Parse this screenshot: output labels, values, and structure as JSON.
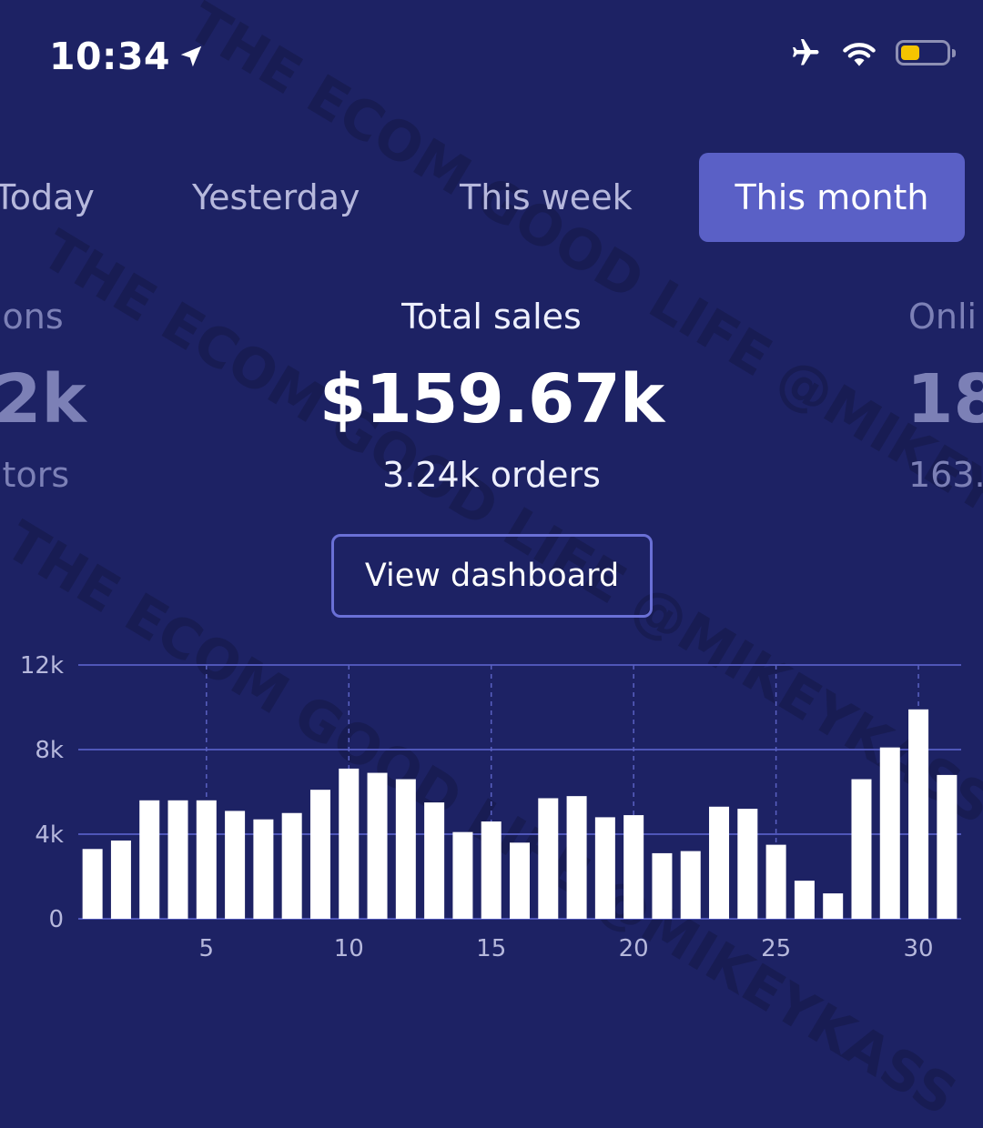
{
  "status_bar": {
    "time": "10:34",
    "icons": [
      "location-arrow-icon",
      "airplane-icon",
      "wifi-icon",
      "battery-icon"
    ],
    "battery_color": "#f5c400"
  },
  "tabs": [
    {
      "label": "Today",
      "active": false
    },
    {
      "label": "Yesterday",
      "active": false
    },
    {
      "label": "This week",
      "active": false
    },
    {
      "label": "This month",
      "active": true
    }
  ],
  "metrics": {
    "left": {
      "title": "ions",
      "value": "2k",
      "sub": "itors"
    },
    "center": {
      "title": "Total sales",
      "value": "$159.67k",
      "sub": "3.24k orders"
    },
    "right": {
      "title": "Onli",
      "value": "18",
      "sub": "163."
    }
  },
  "dashboard_button": {
    "label": "View dashboard"
  },
  "watermark": "THE ECOM GOOD LIFE @MIKEYKASS",
  "chart_data": {
    "type": "bar",
    "x": [
      1,
      2,
      3,
      4,
      5,
      6,
      7,
      8,
      9,
      10,
      11,
      12,
      13,
      14,
      15,
      16,
      17,
      18,
      19,
      20,
      21,
      22,
      23,
      24,
      25,
      26,
      27,
      28,
      29,
      30,
      31
    ],
    "values": [
      3300,
      3700,
      5600,
      5600,
      5600,
      5100,
      4700,
      5000,
      6100,
      7100,
      6900,
      6600,
      5500,
      4100,
      4600,
      3600,
      5700,
      5800,
      4800,
      4900,
      3100,
      3200,
      5300,
      5200,
      3500,
      1800,
      1200,
      6600,
      8100,
      9900,
      6800
    ],
    "x_ticks": [
      "5",
      "10",
      "15",
      "20",
      "25",
      "30"
    ],
    "x_tick_values": [
      5,
      10,
      15,
      20,
      25,
      30
    ],
    "y_ticks": [
      "0",
      "4k",
      "8k",
      "12k"
    ],
    "y_tick_values": [
      0,
      4000,
      8000,
      12000
    ],
    "ylim": [
      0,
      12000
    ],
    "grid": true,
    "colors": {
      "bar": "#ffffff",
      "grid": "#4f56b8",
      "vgrid": "#5a61c2"
    }
  }
}
